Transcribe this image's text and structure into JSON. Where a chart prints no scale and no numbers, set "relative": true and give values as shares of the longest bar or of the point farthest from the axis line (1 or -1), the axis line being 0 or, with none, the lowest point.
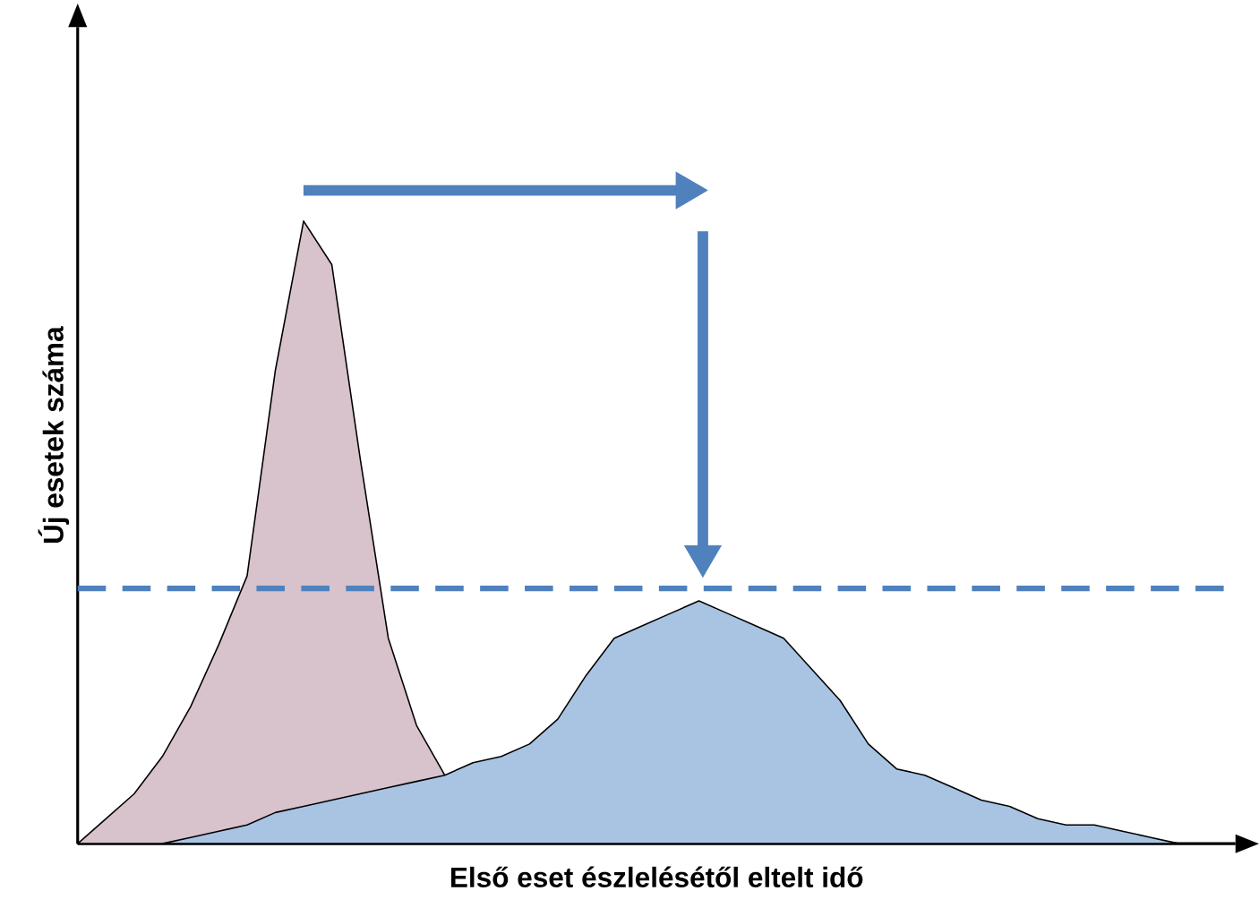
{
  "chart_data": {
    "type": "area",
    "relative": true,
    "xlabel": "Első eset észlelésétől eltelt idő",
    "ylabel": "Új esetek száma",
    "categories": [
      null,
      null,
      null,
      null,
      null,
      null,
      null,
      null,
      null,
      null,
      null,
      null,
      null,
      null,
      null,
      null,
      null,
      null,
      null,
      null,
      null,
      null,
      null,
      null,
      null,
      null,
      null,
      null,
      null,
      null,
      null,
      null,
      null,
      null,
      null,
      null,
      null,
      null,
      null,
      null,
      null,
      null
    ],
    "series": [
      {
        "color": "#d8c2cc",
        "values": [
          0,
          0.04,
          0.08,
          0.14,
          0.22,
          0.32,
          0.43,
          0.76,
          1,
          0.93,
          0.62,
          0.33,
          0.19,
          0.11,
          null,
          0,
          null,
          null,
          null,
          null,
          null,
          null,
          null,
          null,
          null,
          null,
          null,
          null,
          null,
          null,
          null,
          null,
          null,
          null,
          null,
          null,
          null,
          null,
          null,
          null,
          null,
          null
        ]
      },
      {
        "color": "#a9c4e3",
        "values": [
          null,
          null,
          null,
          0,
          0.01,
          0.02,
          0.03,
          0.05,
          0.06,
          0.07,
          0.08,
          0.09,
          0.1,
          0.11,
          0.13,
          0.14,
          0.16,
          0.2,
          0.27,
          0.33,
          0.35,
          0.37,
          0.39,
          0.37,
          0.35,
          0.33,
          0.28,
          0.23,
          0.16,
          0.12,
          0.11,
          0.09,
          0.07,
          0.06,
          0.04,
          0.03,
          0.03,
          0.02,
          0.01,
          0,
          null,
          null
        ]
      }
    ],
    "ref_lines": [
      {
        "axis": "y",
        "value": 0.41,
        "color": "#4f81bd",
        "line_style": "dashed"
      }
    ]
  }
}
